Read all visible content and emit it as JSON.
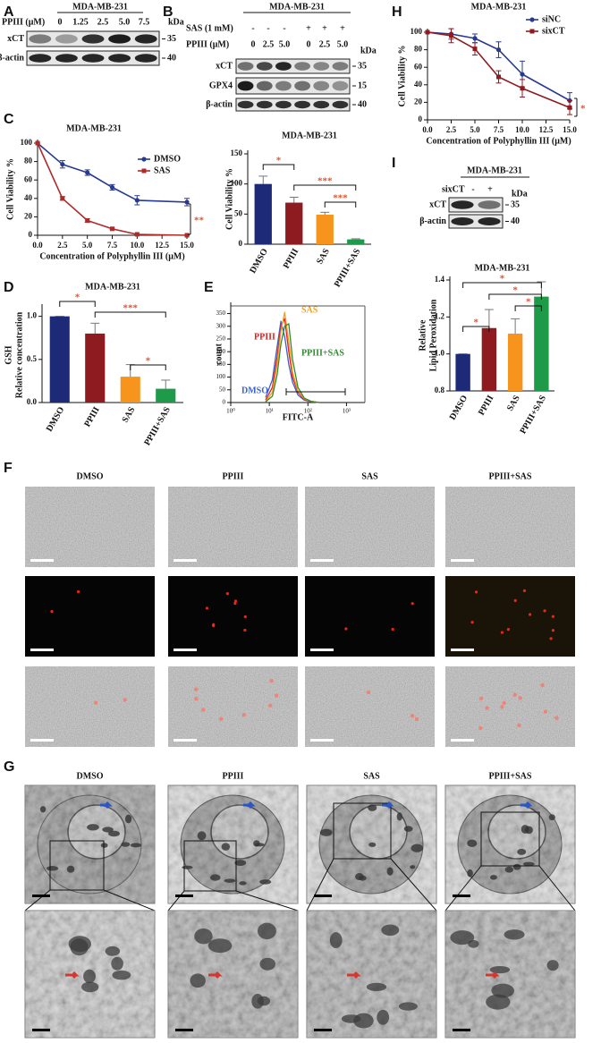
{
  "panel_labels": [
    "A",
    "B",
    "C",
    "D",
    "E",
    "F",
    "G",
    "H",
    "I"
  ],
  "blots": [
    {
      "title": "MDA-MB-231",
      "conditions": [
        {
          "name": "PPIII (μM)",
          "lanes": [
            "0",
            "1.25",
            "2.5",
            "5.0",
            "7.5"
          ]
        }
      ],
      "kda_label": "kDa",
      "bands": [
        {
          "name": "xCT",
          "kda": "35"
        },
        {
          "name": "β-actin",
          "kda": "40"
        }
      ]
    },
    {
      "title": "MDA-MB-231",
      "conditions": [
        {
          "name": "SAS (1 mM)",
          "lanes": [
            "-",
            "-",
            "-",
            "+",
            "+",
            "+"
          ]
        },
        {
          "name": "PPIII (μM)",
          "lanes": [
            "0",
            "2.5",
            "5.0",
            "0",
            "2.5",
            "5.0"
          ]
        }
      ],
      "kda_label": "kDa",
      "bands": [
        {
          "name": "xCT",
          "kda": "35"
        },
        {
          "name": "GPX4",
          "kda": "15"
        },
        {
          "name": "β-actin",
          "kda": "40"
        }
      ]
    },
    {
      "title": "MDA-MB-231",
      "conditions": [
        {
          "name": "sixCT",
          "lanes": [
            "-",
            "+"
          ]
        }
      ],
      "kda_label": "kDa",
      "bands": [
        {
          "name": "xCT",
          "kda": "35"
        },
        {
          "name": "β-actin",
          "kda": "40"
        }
      ]
    }
  ],
  "chart_data": [
    {
      "type": "line",
      "title": "MDA-MB-231",
      "x": [
        0,
        2.5,
        5,
        7.5,
        10,
        15
      ],
      "series": [
        {
          "name": "DMSO",
          "color": "#283a8f",
          "values": [
            100,
            77,
            68,
            52,
            38,
            36
          ],
          "errors": [
            0,
            4,
            3,
            3,
            5,
            4
          ]
        },
        {
          "name": "SAS",
          "color": "#b02a2a",
          "values": [
            100,
            40,
            16,
            7,
            1,
            0
          ],
          "errors": [
            0,
            2,
            2,
            1,
            0,
            0
          ]
        }
      ],
      "xlim": [
        0,
        15
      ],
      "xticks": [
        {
          "value": 0,
          "label": "0.0"
        },
        2.5,
        {
          "value": 5,
          "label": "5.0"
        },
        7.5,
        {
          "value": 10,
          "label": "10.0"
        },
        12.5,
        {
          "value": 15,
          "label": "15.0"
        }
      ],
      "ylim": [
        0,
        100
      ],
      "yticks": [
        0,
        20,
        40,
        60,
        80,
        100
      ],
      "xlabel": "Concentration of Polyphyllin III (μM)",
      "ylabel": "Cell Viability %",
      "annotations": [
        "**"
      ]
    },
    {
      "type": "bar",
      "title": "MDA-MB-231",
      "categories": [
        "DMSO",
        "PPIII",
        "SAS",
        "PPIII+SAS"
      ],
      "values": [
        100,
        69,
        49,
        8
      ],
      "errors": [
        13,
        9,
        4,
        1
      ],
      "colors": [
        "#1d2a78",
        "#8e1b1f",
        "#f7941d",
        "#1e9a48"
      ],
      "ylim": [
        0,
        150
      ],
      "yticks": [
        0,
        50,
        100,
        150
      ],
      "ylabel": "Cell Viability %",
      "annotations": [
        "*",
        "***",
        "***"
      ]
    },
    {
      "type": "line",
      "title": "MDA-MB-231",
      "x": [
        0,
        2.5,
        5,
        7.5,
        10,
        15
      ],
      "series": [
        {
          "name": "siNC",
          "color": "#283a8f",
          "values": [
            100,
            98,
            93,
            80,
            52,
            22
          ],
          "errors": [
            0,
            6,
            5,
            9,
            15,
            9
          ]
        },
        {
          "name": "sixCT",
          "color": "#8e1b1f",
          "values": [
            100,
            96,
            81,
            49,
            36,
            14
          ],
          "errors": [
            0,
            8,
            7,
            7,
            10,
            8
          ]
        }
      ],
      "xlim": [
        0,
        15
      ],
      "xticks": [
        {
          "value": 0,
          "label": "0.0"
        },
        2.5,
        {
          "value": 5,
          "label": "5.0"
        },
        7.5,
        {
          "value": 10,
          "label": "10.0"
        },
        12.5,
        {
          "value": 15,
          "label": "15.0"
        }
      ],
      "ylim": [
        0,
        100
      ],
      "yticks": [
        0,
        20,
        40,
        60,
        80,
        100
      ],
      "xlabel": "Concentration of Polyphyllin III (μM)",
      "ylabel": "Cell Viability %",
      "annotations": [
        "*"
      ]
    },
    {
      "type": "bar",
      "title": "MDA-MB-231",
      "categories": [
        "DMSO",
        "PPIII",
        "SAS",
        "PPIII+SAS"
      ],
      "values": [
        1.0,
        0.8,
        0.3,
        0.16
      ],
      "errors": [
        0,
        0.12,
        0.14,
        0.1
      ],
      "colors": [
        "#1d2a78",
        "#8e1b1f",
        "#f7941d",
        "#1e9a48"
      ],
      "ylim": [
        0,
        1.1
      ],
      "yticks": [
        {
          "value": 0,
          "label": "0.0"
        },
        0.5,
        {
          "value": 1,
          "label": "1.0"
        }
      ],
      "ylabel": [
        "GSH",
        "Relative concentration"
      ],
      "annotations": [
        "*",
        "***",
        "*"
      ]
    },
    {
      "type": "bar",
      "title": "MDA-MB-231",
      "categories": [
        "DMSO",
        "PPIII",
        "SAS",
        "PPIII+SAS"
      ],
      "values": [
        1.0,
        1.14,
        1.11,
        1.31
      ],
      "errors": [
        0,
        0.1,
        0.08,
        0.08
      ],
      "colors": [
        "#1d2a78",
        "#8e1b1f",
        "#f7941d",
        "#1e9a48"
      ],
      "ylim": [
        0.8,
        1.4
      ],
      "yticks": [
        0.8,
        {
          "value": 1,
          "label": "1.0"
        },
        1.2,
        1.4
      ],
      "ylabel": [
        "Relative",
        "Lipid Peroxidation"
      ],
      "annotations": [
        "*",
        "*",
        "*",
        "*"
      ]
    },
    {
      "type": "density",
      "xscale": "log",
      "x": [
        8,
        12,
        16,
        20,
        25,
        32,
        40,
        55,
        80,
        120,
        200
      ],
      "series": [
        {
          "name": "DMSO",
          "color": "#3a5fcd",
          "values": [
            20,
            90,
            220,
            320,
            260,
            150,
            80,
            30,
            10,
            3,
            0
          ]
        },
        {
          "name": "PPIII",
          "color": "#e02020",
          "values": [
            10,
            60,
            180,
            300,
            330,
            200,
            100,
            40,
            12,
            4,
            0
          ]
        },
        {
          "name": "SAS",
          "color": "#f5a020",
          "values": [
            5,
            40,
            150,
            280,
            355,
            240,
            120,
            45,
            15,
            5,
            0
          ]
        },
        {
          "name": "PPIII+SAS",
          "color": "#2e8b2e",
          "values": [
            3,
            25,
            110,
            230,
            300,
            310,
            170,
            60,
            18,
            5,
            0
          ]
        }
      ],
      "xlim": [
        1,
        3000
      ],
      "xticks": [
        {
          "value": 1,
          "label": "10⁰"
        },
        {
          "value": 10,
          "label": "10¹"
        },
        {
          "value": 100,
          "label": "10²"
        },
        {
          "value": 1000,
          "label": "10³"
        }
      ],
      "ylim": [
        0,
        380
      ],
      "yticks": [
        0,
        50,
        100,
        150,
        200,
        250,
        300,
        350
      ],
      "xlabel": "FITC-A",
      "ylabel": "count"
    }
  ],
  "panel_f": {
    "columns": [
      "DMSO",
      "PPIII",
      "SAS",
      "PPIII+SAS"
    ]
  },
  "panel_g": {
    "columns": [
      "DMSO",
      "PPIII",
      "SAS",
      "PPIII+SAS"
    ]
  }
}
